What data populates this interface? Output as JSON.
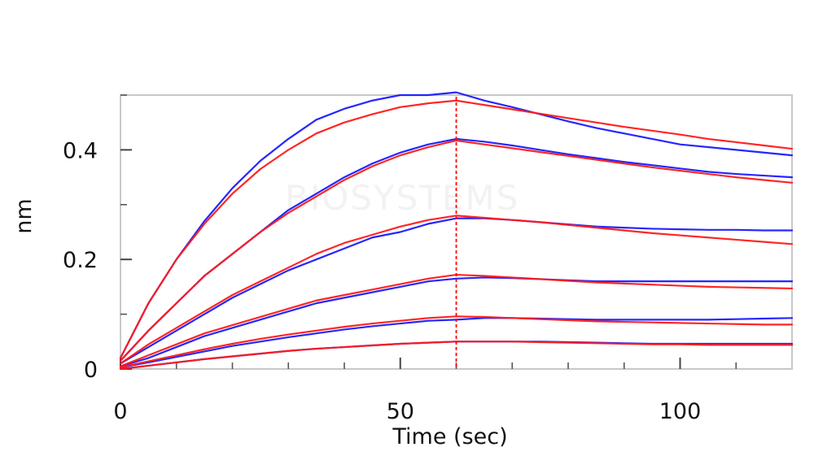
{
  "watermark": "BIOSYSTEMS",
  "chart_data": {
    "type": "line",
    "title": "",
    "xlabel": "Time (sec)",
    "ylabel": "nm",
    "xlim": [
      0,
      120
    ],
    "ylim": [
      0,
      0.5
    ],
    "xticks_major": [
      0,
      50,
      100
    ],
    "xticks_minor": [
      10,
      20,
      30,
      40,
      60,
      70,
      80,
      90,
      110
    ],
    "yticks_major": [
      0,
      0.2,
      0.4
    ],
    "yticks_minor": [
      0.1,
      0.3,
      0.5
    ],
    "ytick_labels": [
      "0",
      "0.2",
      "0.4"
    ],
    "xtick_labels": [
      "0",
      "50",
      "100"
    ],
    "grid": false,
    "legend": "none",
    "dissociation_start": 60,
    "colors": {
      "measured": "#1a1aff",
      "fit": "#ff1a1a",
      "marker": "#ff0000",
      "frame": "#c8c8c8",
      "text": "#111111"
    },
    "series": [
      {
        "kind": "measured",
        "x": [
          0,
          5,
          10,
          15,
          20,
          25,
          30,
          35,
          40,
          45,
          50,
          55,
          60,
          65,
          70,
          75,
          80,
          85,
          90,
          95,
          100,
          105,
          110,
          115,
          120
        ],
        "values": [
          0.02,
          0.12,
          0.2,
          0.27,
          0.33,
          0.38,
          0.42,
          0.455,
          0.475,
          0.49,
          0.5,
          0.5,
          0.505,
          0.49,
          0.478,
          0.465,
          0.452,
          0.44,
          0.43,
          0.42,
          0.41,
          0.405,
          0.4,
          0.395,
          0.39
        ]
      },
      {
        "kind": "fit",
        "x": [
          0,
          5,
          10,
          15,
          20,
          25,
          30,
          35,
          40,
          45,
          50,
          55,
          60,
          65,
          70,
          75,
          80,
          85,
          90,
          95,
          100,
          105,
          110,
          115,
          120
        ],
        "values": [
          0.02,
          0.12,
          0.2,
          0.265,
          0.32,
          0.365,
          0.4,
          0.43,
          0.45,
          0.465,
          0.478,
          0.485,
          0.49,
          0.482,
          0.474,
          0.466,
          0.458,
          0.45,
          0.442,
          0.435,
          0.428,
          0.42,
          0.414,
          0.408,
          0.402
        ]
      },
      {
        "kind": "measured",
        "x": [
          0,
          5,
          10,
          15,
          20,
          25,
          30,
          35,
          40,
          45,
          50,
          55,
          60,
          65,
          70,
          75,
          80,
          85,
          90,
          95,
          100,
          105,
          110,
          115,
          120
        ],
        "values": [
          0.015,
          0.07,
          0.12,
          0.17,
          0.21,
          0.25,
          0.29,
          0.32,
          0.35,
          0.375,
          0.395,
          0.41,
          0.42,
          0.415,
          0.408,
          0.4,
          0.392,
          0.385,
          0.378,
          0.372,
          0.366,
          0.36,
          0.356,
          0.353,
          0.35
        ]
      },
      {
        "kind": "fit",
        "x": [
          0,
          5,
          10,
          15,
          20,
          25,
          30,
          35,
          40,
          45,
          50,
          55,
          60,
          65,
          70,
          75,
          80,
          85,
          90,
          95,
          100,
          105,
          110,
          115,
          120
        ],
        "values": [
          0.015,
          0.07,
          0.12,
          0.17,
          0.21,
          0.25,
          0.285,
          0.315,
          0.345,
          0.37,
          0.39,
          0.405,
          0.417,
          0.41,
          0.403,
          0.396,
          0.389,
          0.382,
          0.375,
          0.368,
          0.362,
          0.356,
          0.35,
          0.345,
          0.34
        ]
      },
      {
        "kind": "measured",
        "x": [
          0,
          5,
          10,
          15,
          20,
          25,
          30,
          35,
          40,
          45,
          50,
          55,
          60,
          65,
          70,
          75,
          80,
          85,
          90,
          95,
          100,
          105,
          110,
          115,
          120
        ],
        "values": [
          0.01,
          0.04,
          0.07,
          0.1,
          0.13,
          0.155,
          0.18,
          0.2,
          0.22,
          0.24,
          0.25,
          0.265,
          0.275,
          0.275,
          0.272,
          0.268,
          0.264,
          0.26,
          0.258,
          0.256,
          0.255,
          0.254,
          0.254,
          0.253,
          0.253
        ]
      },
      {
        "kind": "fit",
        "x": [
          0,
          5,
          10,
          15,
          20,
          25,
          30,
          35,
          40,
          45,
          50,
          55,
          60,
          65,
          70,
          75,
          80,
          85,
          90,
          95,
          100,
          105,
          110,
          115,
          120
        ],
        "values": [
          0.01,
          0.045,
          0.075,
          0.105,
          0.135,
          0.16,
          0.185,
          0.21,
          0.23,
          0.245,
          0.26,
          0.272,
          0.28,
          0.276,
          0.272,
          0.268,
          0.263,
          0.258,
          0.253,
          0.248,
          0.244,
          0.24,
          0.236,
          0.232,
          0.228
        ]
      },
      {
        "kind": "measured",
        "x": [
          0,
          5,
          10,
          15,
          20,
          25,
          30,
          35,
          40,
          45,
          50,
          55,
          60,
          65,
          70,
          75,
          80,
          85,
          90,
          95,
          100,
          105,
          110,
          115,
          120
        ],
        "values": [
          0.005,
          0.02,
          0.04,
          0.06,
          0.075,
          0.09,
          0.105,
          0.12,
          0.13,
          0.14,
          0.15,
          0.16,
          0.165,
          0.167,
          0.166,
          0.164,
          0.162,
          0.16,
          0.16,
          0.16,
          0.16,
          0.16,
          0.16,
          0.16,
          0.16
        ]
      },
      {
        "kind": "fit",
        "x": [
          0,
          5,
          10,
          15,
          20,
          25,
          30,
          35,
          40,
          45,
          50,
          55,
          60,
          65,
          70,
          75,
          80,
          85,
          90,
          95,
          100,
          105,
          110,
          115,
          120
        ],
        "values": [
          0.005,
          0.025,
          0.045,
          0.065,
          0.08,
          0.095,
          0.11,
          0.125,
          0.135,
          0.145,
          0.155,
          0.165,
          0.172,
          0.17,
          0.167,
          0.164,
          0.161,
          0.158,
          0.156,
          0.154,
          0.152,
          0.15,
          0.149,
          0.148,
          0.147
        ]
      },
      {
        "kind": "measured",
        "x": [
          0,
          5,
          10,
          15,
          20,
          25,
          30,
          35,
          40,
          45,
          50,
          55,
          60,
          65,
          70,
          75,
          80,
          85,
          90,
          95,
          100,
          105,
          110,
          115,
          120
        ],
        "values": [
          0.003,
          0.012,
          0.022,
          0.032,
          0.042,
          0.05,
          0.058,
          0.065,
          0.072,
          0.078,
          0.083,
          0.088,
          0.09,
          0.093,
          0.093,
          0.092,
          0.091,
          0.09,
          0.09,
          0.09,
          0.09,
          0.09,
          0.091,
          0.092,
          0.093
        ]
      },
      {
        "kind": "fit",
        "x": [
          0,
          5,
          10,
          15,
          20,
          25,
          30,
          35,
          40,
          45,
          50,
          55,
          60,
          65,
          70,
          75,
          80,
          85,
          90,
          95,
          100,
          105,
          110,
          115,
          120
        ],
        "values": [
          0.003,
          0.014,
          0.025,
          0.036,
          0.046,
          0.055,
          0.063,
          0.07,
          0.077,
          0.083,
          0.088,
          0.093,
          0.096,
          0.095,
          0.093,
          0.091,
          0.089,
          0.087,
          0.086,
          0.085,
          0.084,
          0.083,
          0.082,
          0.081,
          0.081
        ]
      },
      {
        "kind": "measured",
        "x": [
          0,
          5,
          10,
          15,
          20,
          25,
          30,
          35,
          40,
          45,
          50,
          55,
          60,
          65,
          70,
          75,
          80,
          85,
          90,
          95,
          100,
          105,
          110,
          115,
          120
        ],
        "values": [
          0.0,
          0.006,
          0.012,
          0.018,
          0.023,
          0.028,
          0.033,
          0.037,
          0.04,
          0.043,
          0.046,
          0.048,
          0.05,
          0.05,
          0.05,
          0.05,
          0.049,
          0.048,
          0.047,
          0.046,
          0.046,
          0.046,
          0.046,
          0.046,
          0.046
        ]
      },
      {
        "kind": "fit",
        "x": [
          0,
          5,
          10,
          15,
          20,
          25,
          30,
          35,
          40,
          45,
          50,
          55,
          60,
          65,
          70,
          75,
          80,
          85,
          90,
          95,
          100,
          105,
          110,
          115,
          120
        ],
        "values": [
          0.0,
          0.006,
          0.012,
          0.018,
          0.023,
          0.028,
          0.033,
          0.037,
          0.04,
          0.043,
          0.046,
          0.048,
          0.05,
          0.05,
          0.05,
          0.049,
          0.048,
          0.047,
          0.046,
          0.045,
          0.045,
          0.044,
          0.044,
          0.044,
          0.044
        ]
      }
    ]
  }
}
